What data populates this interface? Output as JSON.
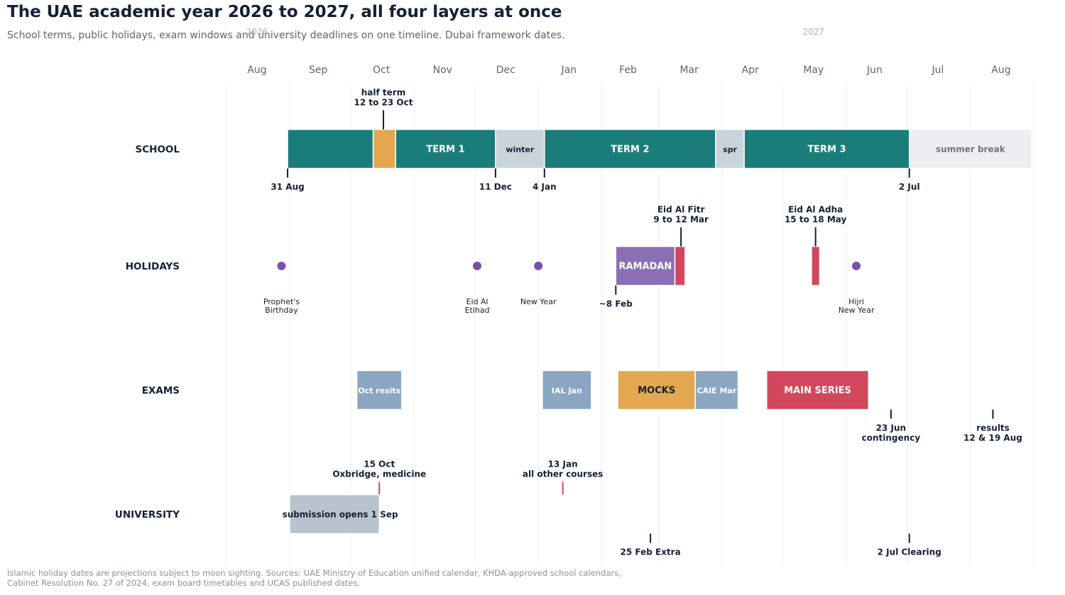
{
  "title": "The UAE academic year 2026 to 2027, all four layers at once",
  "subtitle": "School terms, public holidays, exam windows and university deadlines on one timeline. Dubai framework dates.",
  "footnote": [
    "Islamic holiday dates are projections subject to moon sighting. Sources: UAE Ministry of Education unified calendar, KHDA-approved school calendars,",
    "Cabinet Resolution No. 27 of 2024, exam board timetables and UCAS published dates."
  ],
  "colors": {
    "teal": "#1a7d79",
    "orange": "#e3a750",
    "lightgray": "#c9d3da",
    "summer": "#eceef1",
    "purple": "#8b6fb4",
    "dot": "#7b4fa5",
    "red": "#d2475b",
    "steel": "#8aa6c2",
    "slate": "#b8c3cd",
    "navy": "#152035",
    "grid": "#eceef1",
    "month": "#5c6675"
  },
  "chart_data": {
    "type": "timeline",
    "x_range": [
      "2026-07-16",
      "2027-08-31"
    ],
    "years": [
      {
        "label": "2026",
        "date": "2026-08-16"
      },
      {
        "label": "2027",
        "date": "2027-05-16"
      }
    ],
    "months": [
      {
        "label": "Aug",
        "date": "2026-08-16"
      },
      {
        "label": "Sep",
        "date": "2026-09-15"
      },
      {
        "label": "Oct",
        "date": "2026-10-16"
      },
      {
        "label": "Nov",
        "date": "2026-11-15"
      },
      {
        "label": "Dec",
        "date": "2026-12-16"
      },
      {
        "label": "Jan",
        "date": "2027-01-16"
      },
      {
        "label": "Feb",
        "date": "2027-02-14"
      },
      {
        "label": "Mar",
        "date": "2027-03-16"
      },
      {
        "label": "Apr",
        "date": "2027-04-15"
      },
      {
        "label": "May",
        "date": "2027-05-16"
      },
      {
        "label": "Jun",
        "date": "2027-06-15"
      },
      {
        "label": "Jul",
        "date": "2027-07-16"
      },
      {
        "label": "Aug",
        "date": "2027-08-16"
      }
    ],
    "month_boundaries": [
      "2026-08-01",
      "2026-09-01",
      "2026-10-01",
      "2026-11-01",
      "2026-12-01",
      "2027-01-01",
      "2027-02-01",
      "2027-03-01",
      "2027-04-01",
      "2027-05-01",
      "2027-06-01",
      "2027-07-01",
      "2027-08-01",
      "2027-09-01"
    ],
    "lanes": [
      {
        "id": "school",
        "label": "SCHOOL"
      },
      {
        "id": "holidays",
        "label": "HOLIDAYS"
      },
      {
        "id": "exams",
        "label": "EXAMS"
      },
      {
        "id": "university",
        "label": "UNIVERSITY"
      }
    ],
    "bars": [
      {
        "lane": "school",
        "start": "2026-08-31",
        "end": "2026-10-12",
        "label": "",
        "color": "teal"
      },
      {
        "lane": "school",
        "start": "2026-10-12",
        "end": "2026-10-23",
        "label": "",
        "color": "orange"
      },
      {
        "lane": "school",
        "start": "2026-10-23",
        "end": "2026-12-11",
        "label": "TERM 1",
        "color": "teal"
      },
      {
        "lane": "school",
        "start": "2026-12-11",
        "end": "2027-01-04",
        "label": "winter",
        "color": "lightgray"
      },
      {
        "lane": "school",
        "start": "2027-01-04",
        "end": "2027-03-29",
        "label": "TERM 2",
        "color": "teal"
      },
      {
        "lane": "school",
        "start": "2027-03-29",
        "end": "2027-04-12",
        "label": "spr",
        "color": "lightgray"
      },
      {
        "lane": "school",
        "start": "2027-04-12",
        "end": "2027-07-02",
        "label": "TERM 3",
        "color": "teal"
      },
      {
        "lane": "school",
        "start": "2027-07-02",
        "end": "2027-08-31",
        "label": "summer break",
        "color": "summer"
      },
      {
        "lane": "holidays",
        "start": "2027-02-08",
        "end": "2027-03-09",
        "label": "RAMADAN",
        "color": "purple"
      },
      {
        "lane": "holidays",
        "start": "2027-03-09",
        "end": "2027-03-14",
        "label": "",
        "color": "red"
      },
      {
        "lane": "holidays",
        "start": "2027-05-15",
        "end": "2027-05-19",
        "label": "",
        "color": "red"
      },
      {
        "lane": "exams",
        "start": "2026-10-04",
        "end": "2026-10-26",
        "label": "Oct resits",
        "color": "steel"
      },
      {
        "lane": "exams",
        "start": "2027-01-03",
        "end": "2027-01-27",
        "label": "IAL Jan",
        "color": "steel"
      },
      {
        "lane": "exams",
        "start": "2027-02-09",
        "end": "2027-03-19",
        "label": "MOCKS",
        "color": "orange"
      },
      {
        "lane": "exams",
        "start": "2027-03-19",
        "end": "2027-04-09",
        "label": "CAIE Mar",
        "color": "steel"
      },
      {
        "lane": "exams",
        "start": "2027-04-23",
        "end": "2027-06-12",
        "label": "MAIN SERIES",
        "color": "red"
      },
      {
        "lane": "university",
        "start": "2026-09-01",
        "end": "2026-10-15",
        "label": "submission opens 1 Sep",
        "color": "slate"
      }
    ],
    "holiday_dots": [
      {
        "date": "2026-08-28",
        "label": [
          "Prophet's",
          "Birthday"
        ]
      },
      {
        "date": "2026-12-02",
        "label": [
          "Eid Al",
          "Etihad"
        ]
      },
      {
        "date": "2027-01-01",
        "label": [
          "New Year"
        ]
      },
      {
        "date": "2027-06-06",
        "label": [
          "Hijri",
          "New Year"
        ]
      }
    ],
    "markers": [
      {
        "lane": "school",
        "date": "2026-10-17",
        "pos": "above",
        "color": "navy",
        "label": [
          "half term",
          "12 to 23 Oct"
        ]
      },
      {
        "lane": "school",
        "date": "2026-08-31",
        "pos": "below",
        "color": "navy",
        "label": [
          "31 Aug"
        ]
      },
      {
        "lane": "school",
        "date": "2026-12-11",
        "pos": "below",
        "color": "navy",
        "label": [
          "11 Dec"
        ]
      },
      {
        "lane": "school",
        "date": "2027-01-04",
        "pos": "below",
        "color": "navy",
        "label": [
          "4 Jan"
        ]
      },
      {
        "lane": "school",
        "date": "2027-07-02",
        "pos": "below",
        "color": "navy",
        "label": [
          "2 Jul"
        ]
      },
      {
        "lane": "holidays",
        "date": "2027-03-12",
        "pos": "above",
        "color": "navy",
        "label": [
          "Eid Al Fitr",
          "9 to 12 Mar"
        ]
      },
      {
        "lane": "holidays",
        "date": "2027-05-17",
        "pos": "above",
        "color": "navy",
        "label": [
          "Eid Al Adha",
          "15 to 18 May"
        ]
      },
      {
        "lane": "holidays",
        "date": "2027-02-08",
        "pos": "below",
        "color": "navy",
        "label": [
          "~8 Feb"
        ]
      },
      {
        "lane": "exams",
        "date": "2027-06-23",
        "pos": "below",
        "color": "navy",
        "label": [
          "23 Jun",
          "contingency"
        ]
      },
      {
        "lane": "exams",
        "date": "2027-08-12",
        "pos": "below",
        "color": "navy",
        "label": [
          "results",
          "12 & 19 Aug"
        ]
      },
      {
        "lane": "university",
        "date": "2026-10-15",
        "pos": "above",
        "color": "red",
        "label": [
          "15 Oct",
          "Oxbridge, medicine"
        ]
      },
      {
        "lane": "university",
        "date": "2027-01-13",
        "pos": "above",
        "color": "red",
        "label": [
          "13 Jan",
          "all other courses"
        ]
      },
      {
        "lane": "university",
        "date": "2027-02-25",
        "pos": "below",
        "color": "navy",
        "label": [
          "25 Feb Extra"
        ]
      },
      {
        "lane": "university",
        "date": "2027-07-02",
        "pos": "below",
        "color": "navy",
        "label": [
          "2 Jul Clearing"
        ]
      }
    ]
  }
}
